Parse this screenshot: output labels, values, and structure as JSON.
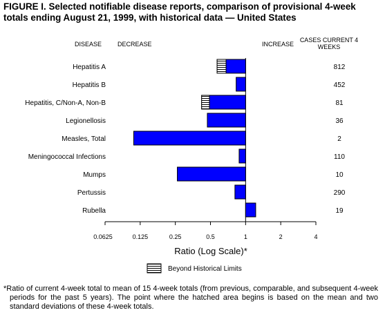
{
  "figure": {
    "title": "FIGURE I. Selected notifiable disease reports, comparison of provisional 4-week totals ending August 21, 1999, with historical data — United States"
  },
  "headers": {
    "disease": "DISEASE",
    "decrease": "DECREASE",
    "increase": "INCREASE",
    "cases": "CASES CURRENT 4 WEEKS"
  },
  "legend": {
    "label": "Beyond Historical Limits"
  },
  "footnote": "*Ratio of current 4-week total to mean of 15 4-week totals (from previous, comparable, and subsequent 4-week periods for the past 5 years). The point where the hatched area begins is based on the mean and two standard deviations of these 4-week totals.",
  "chart_data": {
    "type": "bar",
    "orientation": "horizontal",
    "scale": "log2",
    "xlabel": "Ratio (Log Scale)*",
    "xlim": [
      0.0625,
      4
    ],
    "xticks": [
      "0.0625",
      "0.125",
      "0.25",
      "0.5",
      "1",
      "2",
      "4"
    ],
    "baseline": 1,
    "bar_color": "#0000ff",
    "hatch_color": "#000000",
    "categories": [
      "Hepatitis A",
      "Hepatitis B",
      "Hepatitis, C/Non-A, Non-B",
      "Legionellosis",
      "Measles, Total",
      "Meningococcal Infections",
      "Mumps",
      "Pertussis",
      "Rubella"
    ],
    "values": [
      0.57,
      0.83,
      0.42,
      0.47,
      0.11,
      0.88,
      0.26,
      0.81,
      1.22
    ],
    "hatch_limit": [
      0.68,
      null,
      0.49,
      null,
      null,
      null,
      null,
      null,
      null
    ],
    "cases": [
      "812",
      "452",
      "81",
      "36",
      "2",
      "110",
      "10",
      "290",
      "19"
    ]
  }
}
